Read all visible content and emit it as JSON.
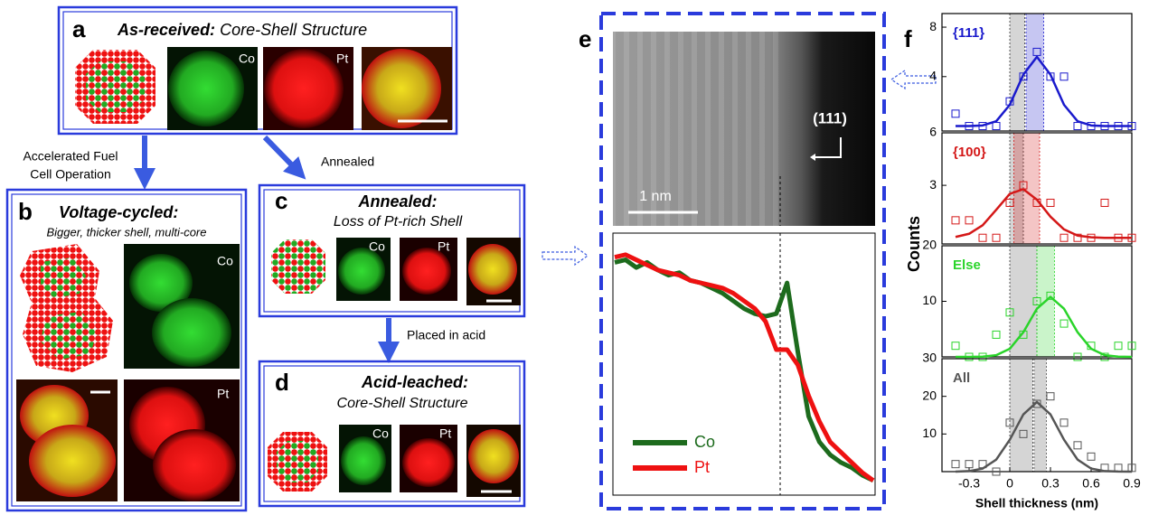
{
  "panels": {
    "a": {
      "label": "a",
      "title": "As-received:",
      "subtitle": "Core-Shell Structure",
      "image_labels": [
        "Co",
        "Pt"
      ]
    },
    "b": {
      "label": "b",
      "title": "Voltage-cycled:",
      "subtitle": "Bigger, thicker shell, multi-core",
      "image_labels": [
        "Co",
        "Pt"
      ]
    },
    "c": {
      "label": "c",
      "title": "Annealed:",
      "subtitle": "Loss of Pt-rich Shell",
      "image_labels": [
        "Co",
        "Pt"
      ]
    },
    "d": {
      "label": "d",
      "title": "Acid-leached:",
      "subtitle": "Core-Shell Structure",
      "image_labels": [
        "Co",
        "Pt"
      ]
    },
    "e": {
      "label": "e",
      "plane": "(111)",
      "scale_bar": "1 nm"
    },
    "f": {
      "label": "f",
      "x_label": "Shell thickness (nm)",
      "y_label": "Counts"
    }
  },
  "arrows": {
    "to_b": [
      "Accelerated Fuel",
      "Cell Operation"
    ],
    "to_c": "Annealed",
    "to_d": "Placed in acid"
  },
  "chart_data": [
    {
      "type": "line",
      "ylim": [
        0,
        1
      ],
      "series": [
        {
          "name": "Co",
          "color": "#1d6b1d",
          "values": [
            0.9,
            0.91,
            0.88,
            0.9,
            0.87,
            0.85,
            0.86,
            0.83,
            0.82,
            0.8,
            0.78,
            0.75,
            0.72,
            0.7,
            0.69,
            0.7,
            0.82,
            0.55,
            0.3,
            0.2,
            0.15,
            0.12,
            0.1,
            0.07,
            0.05
          ]
        },
        {
          "name": "Pt",
          "color": "#ee1111",
          "values": [
            0.92,
            0.93,
            0.91,
            0.89,
            0.87,
            0.86,
            0.85,
            0.83,
            0.82,
            0.81,
            0.8,
            0.78,
            0.75,
            0.72,
            0.67,
            0.56,
            0.56,
            0.5,
            0.38,
            0.28,
            0.2,
            0.16,
            0.12,
            0.08,
            0.05
          ]
        }
      ]
    },
    {
      "type": "scatter",
      "title": "{111}",
      "color": "#1a1acc",
      "xlim": [
        -0.5,
        0.9
      ],
      "ylim": [
        -0.4,
        9.1
      ],
      "yticks": [
        4,
        8
      ],
      "x": [
        -0.4,
        -0.3,
        -0.2,
        -0.1,
        0,
        0.1,
        0.2,
        0.3,
        0.4,
        0.5,
        0.6,
        0.7,
        0.8,
        0.9
      ],
      "values": [
        1,
        0,
        0,
        0,
        2,
        4,
        6,
        4,
        4,
        0,
        0,
        0,
        0,
        0
      ],
      "fit_values": [
        0,
        0,
        0.05,
        0.39,
        1.72,
        4.16,
        5.6,
        4.16,
        1.72,
        0.39,
        0.05,
        0,
        0,
        0
      ],
      "shaded": [
        [
          0,
          0.11
        ],
        [
          0.12,
          0.25
        ]
      ]
    },
    {
      "type": "scatter",
      "title": "{100}",
      "color": "#d41818",
      "xlim": [
        -0.5,
        0.9
      ],
      "ylim": [
        -0.35,
        6
      ],
      "yticks": [
        3,
        6
      ],
      "x": [
        -0.4,
        -0.3,
        -0.2,
        -0.1,
        0,
        0.1,
        0.2,
        0.3,
        0.4,
        0.5,
        0.6,
        0.7,
        0.8,
        0.9
      ],
      "values": [
        1,
        1,
        0,
        0,
        2,
        3,
        2,
        2,
        0,
        0,
        0,
        2,
        0,
        0
      ],
      "fit_values": [
        0.05,
        0.23,
        0.72,
        1.6,
        2.51,
        2.78,
        2.18,
        1.21,
        0.48,
        0.13,
        0.03,
        0,
        0,
        0
      ],
      "shaded": [
        [
          0,
          0.1
        ],
        [
          0.03,
          0.22
        ]
      ]
    },
    {
      "type": "scatter",
      "title": "Else",
      "color": "#2ad42a",
      "xlim": [
        -0.5,
        0.9
      ],
      "ylim": [
        0,
        20
      ],
      "yticks": [
        10,
        20
      ],
      "x": [
        -0.4,
        -0.3,
        -0.2,
        -0.1,
        0,
        0.1,
        0.2,
        0.3,
        0.4,
        0.5,
        0.6,
        0.7,
        0.8,
        0.9
      ],
      "values": [
        2,
        0,
        0,
        4,
        8,
        4,
        10,
        11,
        6,
        0,
        2,
        0,
        2,
        2
      ],
      "fit_values": [
        0,
        0,
        0.04,
        0.31,
        1.46,
        4.44,
        8.66,
        10.8,
        8.66,
        4.44,
        1.46,
        0.31,
        0.04,
        0
      ],
      "shaded": [
        [
          0,
          0.2
        ],
        [
          0.2,
          0.33
        ]
      ]
    },
    {
      "type": "scatter",
      "title": "All",
      "color": "#555555",
      "xlim": [
        -0.5,
        0.9
      ],
      "ylim": [
        0,
        30
      ],
      "yticks": [
        10,
        20,
        30
      ],
      "xticks": [
        -0.3,
        0,
        0.3,
        0.6,
        0.9
      ],
      "x": [
        -0.4,
        -0.3,
        -0.2,
        -0.1,
        0,
        0.1,
        0.2,
        0.3,
        0.4,
        0.5,
        0.6,
        0.7,
        0.8,
        0.9
      ],
      "values": [
        2,
        2,
        2,
        0,
        13,
        10,
        18,
        20,
        13,
        7,
        4,
        1,
        1,
        1
      ],
      "fit_values": [
        0,
        0.14,
        0.81,
        3.19,
        8.47,
        15.2,
        18.5,
        15.2,
        8.47,
        3.19,
        0.81,
        0.14,
        0.02,
        0
      ],
      "shaded": [
        [
          0,
          0.17
        ],
        [
          0.18,
          0.27
        ]
      ]
    }
  ]
}
